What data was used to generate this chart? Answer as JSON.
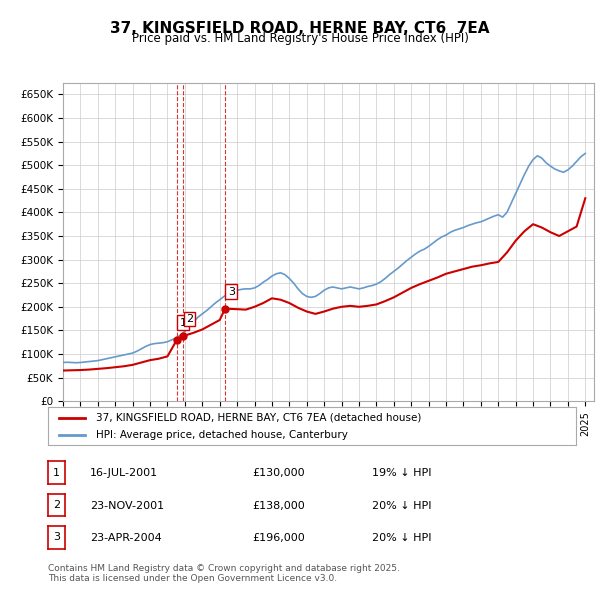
{
  "title": "37, KINGSFIELD ROAD, HERNE BAY, CT6  7EA",
  "subtitle": "Price paid vs. HM Land Registry's House Price Index (HPI)",
  "ylabel_ticks": [
    "£0",
    "£50K",
    "£100K",
    "£150K",
    "£200K",
    "£250K",
    "£300K",
    "£350K",
    "£400K",
    "£450K",
    "£500K",
    "£550K",
    "£600K",
    "£650K"
  ],
  "ytick_values": [
    0,
    50000,
    100000,
    150000,
    200000,
    250000,
    300000,
    350000,
    400000,
    450000,
    500000,
    550000,
    600000,
    650000
  ],
  "ylim": [
    0,
    675000
  ],
  "xlim_start": 1995.0,
  "xlim_end": 2025.5,
  "red_line_color": "#cc0000",
  "blue_line_color": "#6699cc",
  "grid_color": "#cccccc",
  "background_color": "#ffffff",
  "plot_bg_color": "#ffffff",
  "transactions": [
    {
      "label": "1",
      "date_str": "16-JUL-2001",
      "date_num": 2001.54,
      "price": 130000
    },
    {
      "label": "2",
      "date_str": "23-NOV-2001",
      "date_num": 2001.9,
      "price": 138000
    },
    {
      "label": "3",
      "date_str": "23-APR-2004",
      "date_num": 2004.31,
      "price": 196000
    }
  ],
  "legend_entries": [
    "37, KINGSFIELD ROAD, HERNE BAY, CT6 7EA (detached house)",
    "HPI: Average price, detached house, Canterbury"
  ],
  "table_rows": [
    {
      "num": "1",
      "date": "16-JUL-2001",
      "price": "£130,000",
      "hpi": "19% ↓ HPI"
    },
    {
      "num": "2",
      "date": "23-NOV-2001",
      "price": "£138,000",
      "hpi": "20% ↓ HPI"
    },
    {
      "num": "3",
      "date": "23-APR-2004",
      "price": "£196,000",
      "hpi": "20% ↓ HPI"
    }
  ],
  "footer": "Contains HM Land Registry data © Crown copyright and database right 2025.\nThis data is licensed under the Open Government Licence v3.0.",
  "dashed_lines": [
    {
      "x": 2001.54,
      "color": "#cc0000"
    },
    {
      "x": 2001.9,
      "color": "#cc0000"
    },
    {
      "x": 2004.31,
      "color": "#cc0000"
    }
  ],
  "hpi_data": {
    "x": [
      1995.0,
      1995.25,
      1995.5,
      1995.75,
      1996.0,
      1996.25,
      1996.5,
      1996.75,
      1997.0,
      1997.25,
      1997.5,
      1997.75,
      1998.0,
      1998.25,
      1998.5,
      1998.75,
      1999.0,
      1999.25,
      1999.5,
      1999.75,
      2000.0,
      2000.25,
      2000.5,
      2000.75,
      2001.0,
      2001.25,
      2001.5,
      2001.75,
      2002.0,
      2002.25,
      2002.5,
      2002.75,
      2003.0,
      2003.25,
      2003.5,
      2003.75,
      2004.0,
      2004.25,
      2004.5,
      2004.75,
      2005.0,
      2005.25,
      2005.5,
      2005.75,
      2006.0,
      2006.25,
      2006.5,
      2006.75,
      2007.0,
      2007.25,
      2007.5,
      2007.75,
      2008.0,
      2008.25,
      2008.5,
      2008.75,
      2009.0,
      2009.25,
      2009.5,
      2009.75,
      2010.0,
      2010.25,
      2010.5,
      2010.75,
      2011.0,
      2011.25,
      2011.5,
      2011.75,
      2012.0,
      2012.25,
      2012.5,
      2012.75,
      2013.0,
      2013.25,
      2013.5,
      2013.75,
      2014.0,
      2014.25,
      2014.5,
      2014.75,
      2015.0,
      2015.25,
      2015.5,
      2015.75,
      2016.0,
      2016.25,
      2016.5,
      2016.75,
      2017.0,
      2017.25,
      2017.5,
      2017.75,
      2018.0,
      2018.25,
      2018.5,
      2018.75,
      2019.0,
      2019.25,
      2019.5,
      2019.75,
      2020.0,
      2020.25,
      2020.5,
      2020.75,
      2021.0,
      2021.25,
      2021.5,
      2021.75,
      2022.0,
      2022.25,
      2022.5,
      2022.75,
      2023.0,
      2023.25,
      2023.5,
      2023.75,
      2024.0,
      2024.25,
      2024.5,
      2024.75,
      2025.0
    ],
    "y": [
      82000,
      82500,
      82000,
      81500,
      82000,
      83000,
      84000,
      85000,
      86000,
      88000,
      90000,
      92000,
      94000,
      96000,
      98000,
      100000,
      102000,
      106000,
      111000,
      116000,
      120000,
      122000,
      123000,
      124000,
      126000,
      130000,
      134000,
      140000,
      148000,
      158000,
      168000,
      178000,
      185000,
      192000,
      200000,
      208000,
      215000,
      222000,
      228000,
      232000,
      235000,
      237000,
      238000,
      238000,
      240000,
      245000,
      252000,
      258000,
      265000,
      270000,
      272000,
      268000,
      260000,
      250000,
      238000,
      228000,
      222000,
      220000,
      222000,
      228000,
      235000,
      240000,
      242000,
      240000,
      238000,
      240000,
      242000,
      240000,
      238000,
      240000,
      243000,
      245000,
      248000,
      253000,
      260000,
      268000,
      275000,
      282000,
      290000,
      298000,
      305000,
      312000,
      318000,
      322000,
      328000,
      335000,
      342000,
      348000,
      352000,
      358000,
      362000,
      365000,
      368000,
      372000,
      375000,
      378000,
      380000,
      384000,
      388000,
      392000,
      395000,
      390000,
      400000,
      420000,
      440000,
      460000,
      480000,
      498000,
      512000,
      520000,
      515000,
      505000,
      498000,
      492000,
      488000,
      485000,
      490000,
      498000,
      508000,
      518000,
      525000
    ]
  },
  "red_data": {
    "x": [
      1995.0,
      1995.5,
      1996.0,
      1996.5,
      1997.0,
      1997.5,
      1998.0,
      1998.5,
      1999.0,
      1999.5,
      2000.0,
      2000.5,
      2001.0,
      2001.54,
      2001.9,
      2002.5,
      2003.0,
      2003.5,
      2004.0,
      2004.31,
      2005.0,
      2005.5,
      2006.0,
      2006.5,
      2007.0,
      2007.5,
      2008.0,
      2008.5,
      2009.0,
      2009.5,
      2010.0,
      2010.5,
      2011.0,
      2011.5,
      2012.0,
      2012.5,
      2013.0,
      2013.5,
      2014.0,
      2014.5,
      2015.0,
      2015.5,
      2016.0,
      2016.5,
      2017.0,
      2017.5,
      2018.0,
      2018.5,
      2019.0,
      2019.5,
      2020.0,
      2020.5,
      2021.0,
      2021.5,
      2022.0,
      2022.5,
      2023.0,
      2023.5,
      2024.0,
      2024.5,
      2025.0
    ],
    "y": [
      65000,
      65500,
      66000,
      67000,
      68500,
      70000,
      72000,
      74000,
      77000,
      82000,
      87000,
      90000,
      95000,
      130000,
      138000,
      145000,
      152000,
      162000,
      172000,
      196000,
      195000,
      194000,
      200000,
      208000,
      218000,
      215000,
      208000,
      198000,
      190000,
      185000,
      190000,
      196000,
      200000,
      202000,
      200000,
      202000,
      205000,
      212000,
      220000,
      230000,
      240000,
      248000,
      255000,
      262000,
      270000,
      275000,
      280000,
      285000,
      288000,
      292000,
      295000,
      315000,
      340000,
      360000,
      375000,
      368000,
      358000,
      350000,
      360000,
      370000,
      430000
    ]
  }
}
